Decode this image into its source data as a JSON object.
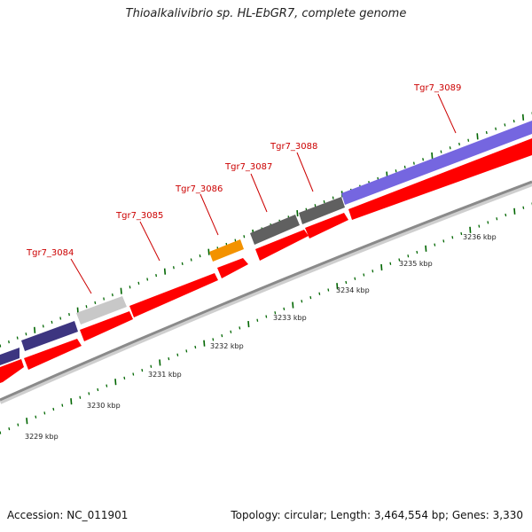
{
  "title": "Thioalkalivibrio sp. HL-EbGR7, complete genome",
  "accession": "Accession: NC_011901",
  "summary": "Topology: circular; Length: 3,464,554 bp; Genes: 3,330",
  "scale_labels": [
    "3229 kbp",
    "3230 kbp",
    "3231 kbp",
    "3232 kbp",
    "3233 kbp",
    "3234 kbp",
    "3235 kbp",
    "3236 kbp"
  ],
  "gene_labels": [
    "Tgr7_3084",
    "Tgr7_3085",
    "Tgr7_3086",
    "Tgr7_3087",
    "Tgr7_3088",
    "Tgr7_3089"
  ],
  "colors": {
    "gene": "#ff0000",
    "backbone": "#888888",
    "tick": "#006600",
    "label": "#cc0000",
    "dark_purple": "#3d3580",
    "light_gray": "#c8c8c8",
    "orange": "#f39200",
    "dark_gray": "#606060",
    "purple": "#7566e0"
  }
}
